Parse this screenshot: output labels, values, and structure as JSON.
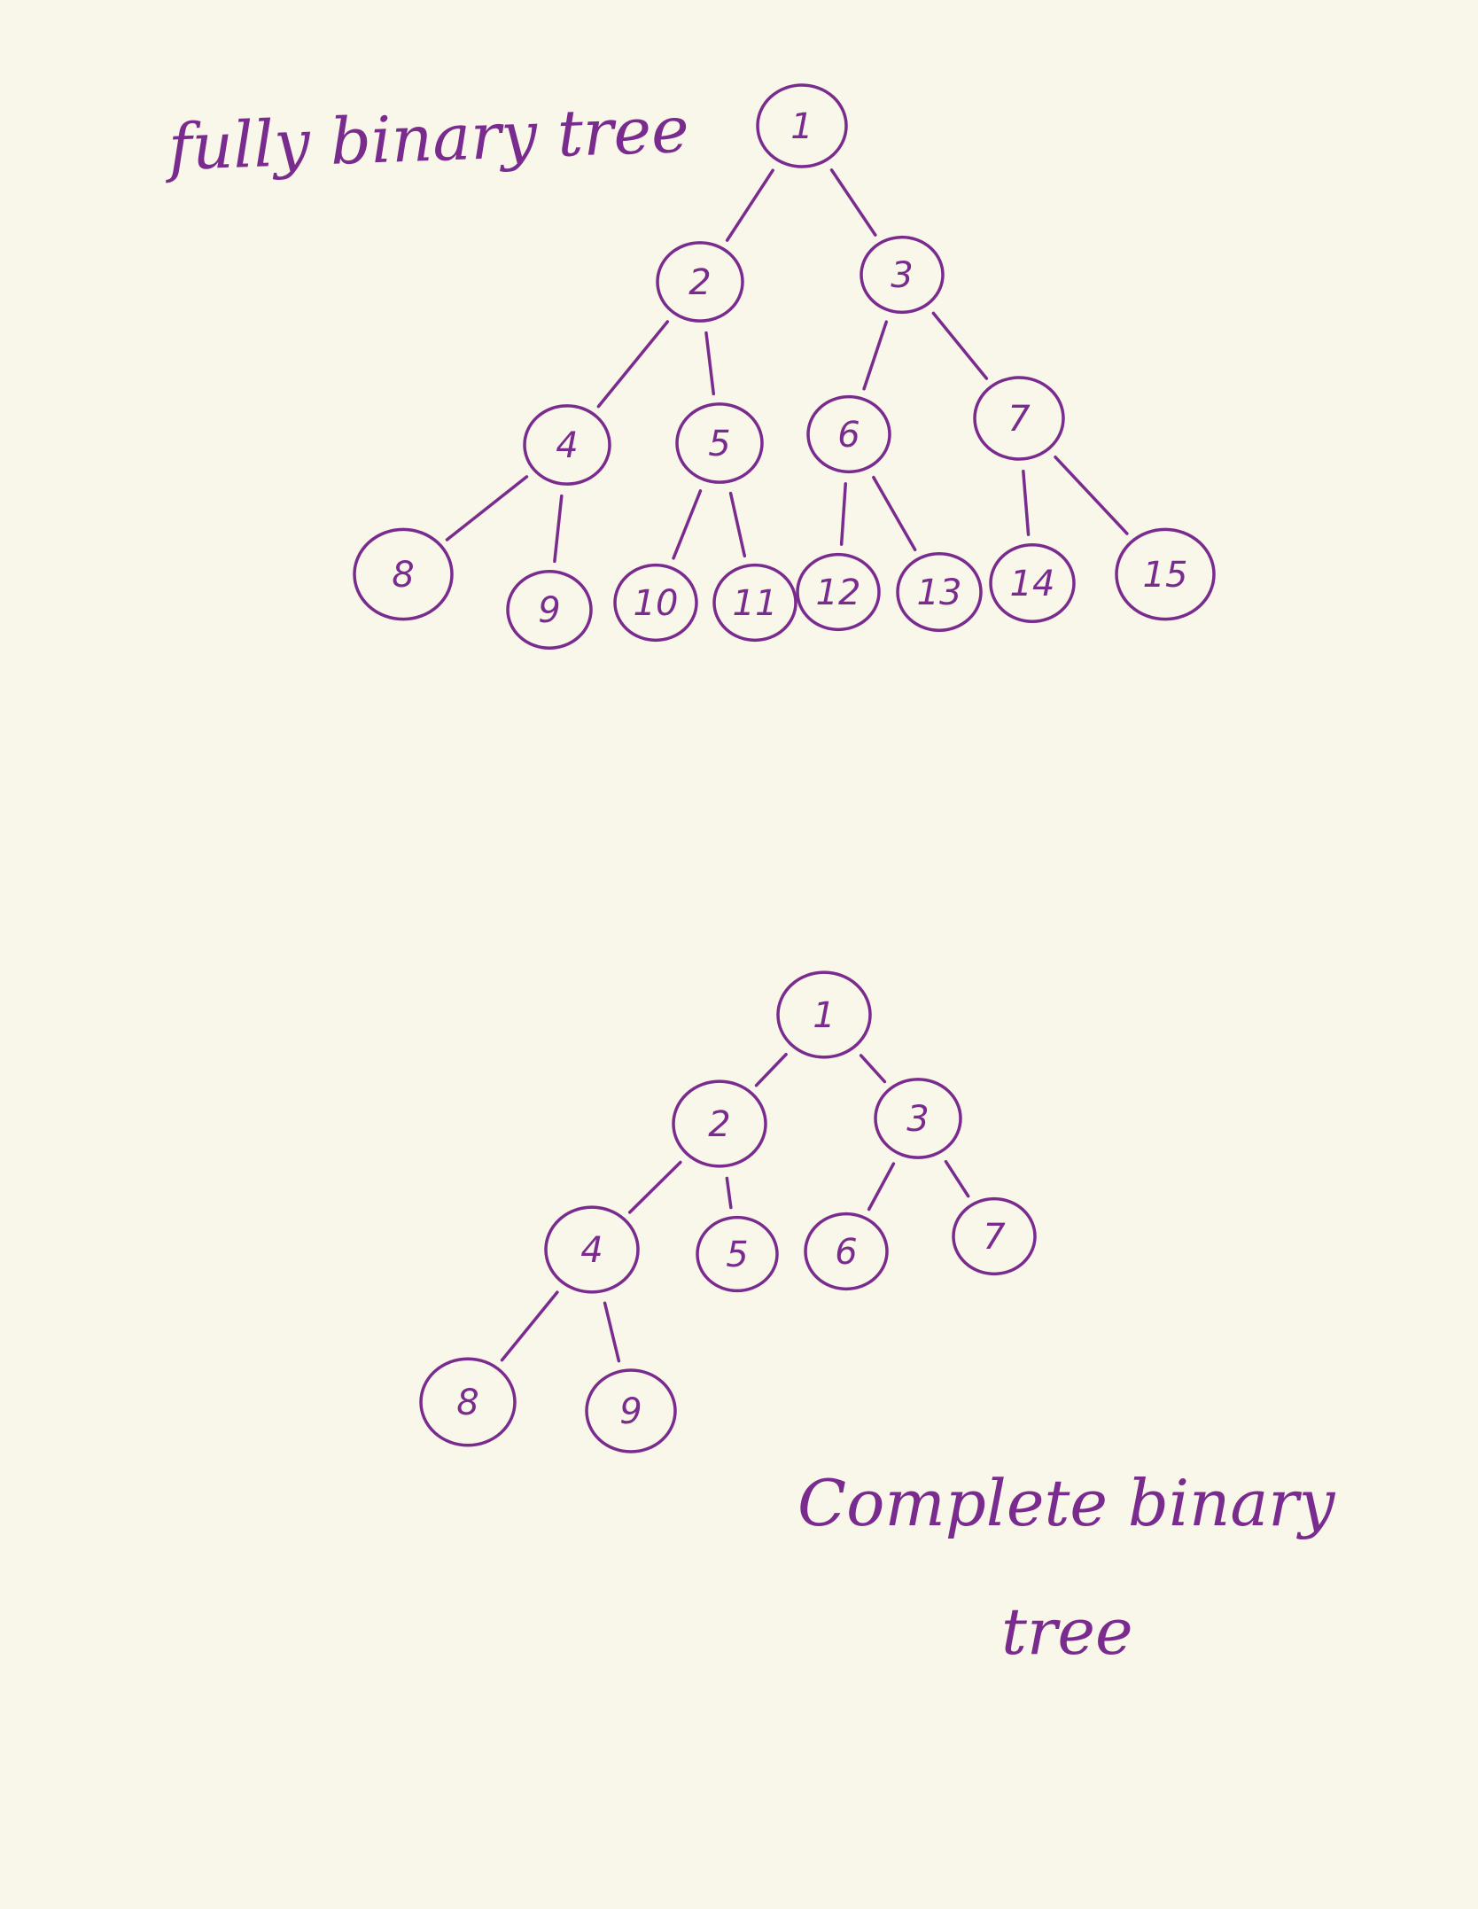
{
  "colors": {
    "ink": "#7a2b8e",
    "paper": "#f9f6ea"
  },
  "labels": {
    "full_title": "fully binary tree",
    "complete_title_line1": "Complete binary",
    "complete_title_line2": "tree"
  },
  "full_tree": {
    "nodes": [
      "1",
      "2",
      "3",
      "4",
      "5",
      "6",
      "7",
      "8",
      "9",
      "10",
      "11",
      "12",
      "13",
      "14",
      "15"
    ]
  },
  "complete_tree": {
    "nodes": [
      "1",
      "2",
      "3",
      "4",
      "5",
      "6",
      "7",
      "8",
      "9"
    ]
  }
}
